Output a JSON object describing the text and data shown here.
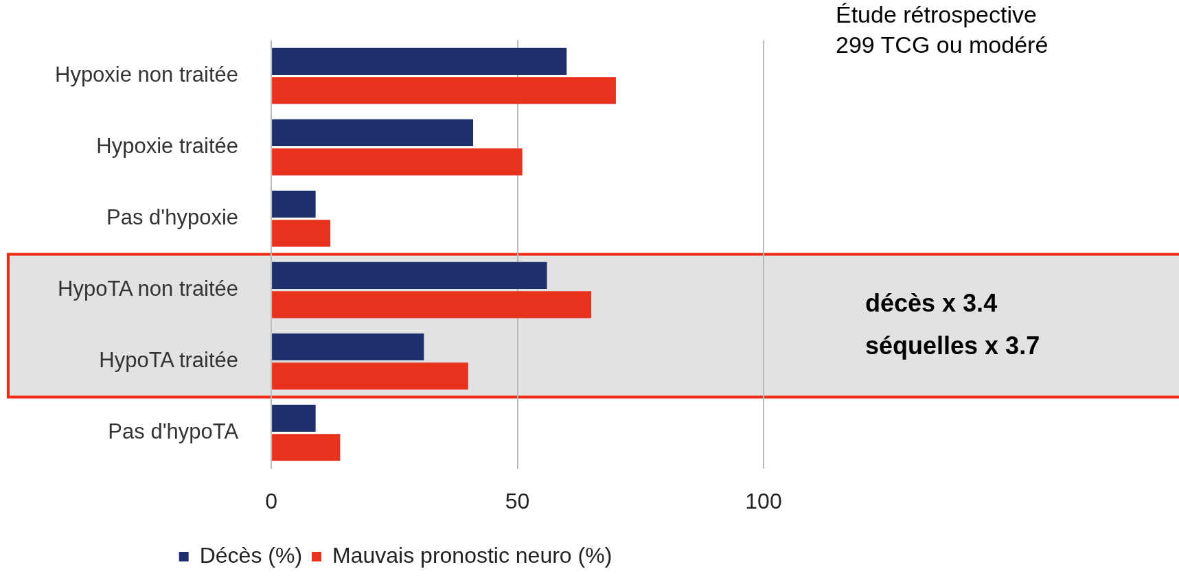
{
  "chart_data": {
    "type": "bar",
    "orientation": "horizontal",
    "categories": [
      "Hypoxie non traitée",
      "Hypoxie traitée",
      "Pas d'hypoxie",
      "HypoTA non traitée",
      "HypoTA traitée",
      "Pas d'hypoTA"
    ],
    "series": [
      {
        "name": "Décès (%)",
        "color": "#1f2f6e",
        "values": [
          60,
          41,
          9,
          56,
          31,
          9
        ]
      },
      {
        "name": "Mauvais pronostic neuro (%)",
        "color": "#e8321e",
        "values": [
          70,
          51,
          12,
          65,
          40,
          14
        ]
      }
    ],
    "xlim": [
      0,
      100
    ],
    "xticks": [
      0,
      50,
      100
    ],
    "grid": "x",
    "legend": "bottom",
    "bands": [
      {
        "axis": "y",
        "from": "HypoTA non traitée",
        "to": "HypoTA traitée",
        "color": "#e2e2e2"
      }
    ],
    "annotations": [
      "Étude rétrospective",
      "299 TCG ou modéré",
      "décès x 3.4",
      "séquelles x 3.7"
    ]
  }
}
